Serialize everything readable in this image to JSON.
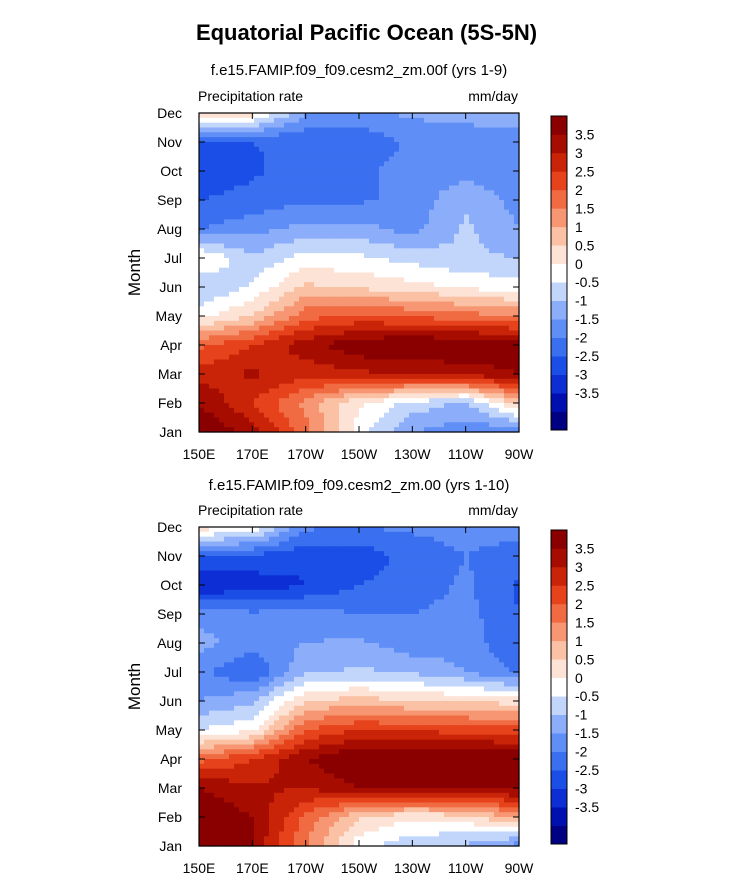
{
  "title": "Equatorial Pacific Ocean (5S-5N)",
  "chart_data": [
    {
      "type": "heatmap",
      "panel_title": "f.e15.FAMIP.f09_f09.cesm2_zm.00f (yrs 1-9)",
      "variable_label": "Precipitation rate",
      "units_label": "mm/day",
      "xlabel": "",
      "ylabel": "Month",
      "x_ticks": [
        "150E",
        "170E",
        "170W",
        "150W",
        "130W",
        "110W",
        "90W"
      ],
      "y_ticks": [
        "Jan",
        "Feb",
        "Mar",
        "Apr",
        "May",
        "Jun",
        "Jul",
        "Aug",
        "Sep",
        "Oct",
        "Nov",
        "Dec"
      ],
      "colorbar_ticks": [
        "3.5",
        "3",
        "2.5",
        "2",
        "1.5",
        "1",
        "0.5",
        "0",
        "-0.5",
        "-1",
        "-1.5",
        "-2",
        "-2.5",
        "-3",
        "-3.5"
      ],
      "x_longitudes": [
        150,
        170,
        190,
        210,
        230,
        250,
        270
      ],
      "values": [
        [
          4.5,
          3.8,
          2.2,
          0.2,
          -1.0,
          -1.3,
          -1.5
        ],
        [
          4.0,
          3.0,
          1.8,
          0.6,
          -0.2,
          -0.6,
          1.2
        ],
        [
          3.2,
          3.6,
          3.2,
          3.4,
          3.5,
          3.7,
          4.0
        ],
        [
          2.4,
          3.0,
          3.8,
          4.4,
          4.6,
          4.5,
          4.3
        ],
        [
          0.3,
          1.0,
          2.3,
          2.6,
          2.4,
          2.2,
          2.0
        ],
        [
          -0.6,
          0.1,
          1.1,
          0.9,
          0.7,
          0.4,
          0.2
        ],
        [
          0.6,
          -0.4,
          0.2,
          0.1,
          -0.2,
          -0.4,
          -0.5
        ],
        [
          -1.5,
          -1.2,
          -0.8,
          -0.8,
          -1.2,
          -0.4,
          -1.0
        ],
        [
          -2.0,
          -1.8,
          -1.6,
          -1.6,
          -1.3,
          -0.6,
          -1.2
        ],
        [
          -2.4,
          -2.1,
          -1.7,
          -1.6,
          -1.3,
          -1.2,
          -1.3
        ],
        [
          -2.3,
          -2.0,
          -1.9,
          -1.9,
          -1.4,
          -1.3,
          -1.2
        ],
        [
          1.2,
          0.8,
          -1.0,
          -1.1,
          -0.9,
          -0.8,
          -0.8
        ]
      ]
    },
    {
      "type": "heatmap",
      "panel_title": "f.e15.FAMIP.f09_f09.cesm2_zm.00 (yrs 1-10)",
      "variable_label": "Precipitation rate",
      "units_label": "mm/day",
      "xlabel": "",
      "ylabel": "Month",
      "x_ticks": [
        "150E",
        "170E",
        "170W",
        "150W",
        "130W",
        "110W",
        "90W"
      ],
      "y_ticks": [
        "Jan",
        "Feb",
        "Mar",
        "Apr",
        "May",
        "Jun",
        "Jul",
        "Aug",
        "Sep",
        "Oct",
        "Nov",
        "Dec"
      ],
      "colorbar_ticks": [
        "3.5",
        "3",
        "2.5",
        "2",
        "1.5",
        "1",
        "0.5",
        "0",
        "-0.5",
        "-1",
        "-1.5",
        "-2",
        "-2.5",
        "-3",
        "-3.5"
      ],
      "x_longitudes": [
        150,
        170,
        190,
        210,
        230,
        250,
        270
      ],
      "values": [
        [
          4.5,
          4.0,
          2.0,
          0.2,
          -0.4,
          -0.6,
          -1.3
        ],
        [
          4.5,
          4.0,
          2.4,
          1.0,
          0.6,
          0.8,
          1.6
        ],
        [
          4.0,
          3.6,
          3.5,
          4.0,
          4.0,
          4.0,
          4.2
        ],
        [
          2.3,
          3.0,
          4.0,
          4.6,
          4.6,
          4.6,
          4.5
        ],
        [
          0.0,
          0.4,
          2.5,
          3.0,
          2.9,
          2.8,
          2.7
        ],
        [
          -1.0,
          -0.6,
          1.0,
          1.2,
          1.0,
          0.9,
          0.8
        ],
        [
          -1.4,
          -2.0,
          -0.6,
          -0.4,
          -0.6,
          -1.0,
          -1.6
        ],
        [
          -0.8,
          -1.3,
          -1.0,
          -0.9,
          -1.3,
          -1.2,
          -2.0
        ],
        [
          -1.2,
          -1.4,
          -1.3,
          -1.5,
          -1.5,
          -1.3,
          -2.0
        ],
        [
          -3.0,
          -2.8,
          -2.5,
          -2.0,
          -1.8,
          -1.4,
          -2.1
        ],
        [
          -2.0,
          -2.1,
          -2.4,
          -2.3,
          -1.8,
          -1.5,
          -1.8
        ],
        [
          0.8,
          0.4,
          -1.4,
          -1.5,
          -1.4,
          -1.3,
          -1.2
        ]
      ]
    }
  ],
  "colors": {
    "levels": [
      "#000082",
      "#0010b0",
      "#0c2ed4",
      "#1a4ee6",
      "#3a6ff0",
      "#5e8ef6",
      "#8caefa",
      "#c2d6fc",
      "#ffffff",
      "#fde3d6",
      "#fbc1a5",
      "#f79672",
      "#f06a42",
      "#e6421c",
      "#ca2408",
      "#a60c00",
      "#8a0000"
    ],
    "axis": "#000000"
  }
}
